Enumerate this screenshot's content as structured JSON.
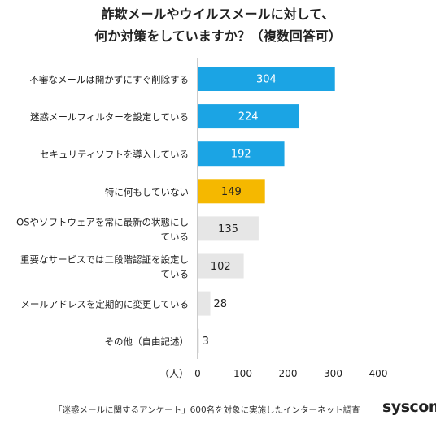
{
  "title": {
    "line1": "詐欺メールやウイルスメールに対して、",
    "line2": "何か対策をしていますか？（複数回答可）"
  },
  "chart_data": {
    "type": "bar",
    "orientation": "horizontal",
    "categories": [
      [
        "不審なメールは開かずにすぐ削除する"
      ],
      [
        "迷惑メールフィルターを設定している"
      ],
      [
        "セキュリティソフトを導入している"
      ],
      [
        "特に何もしていない"
      ],
      [
        "OSやソフトウェアを常に最新の状態にし",
        "ている"
      ],
      [
        "重要なサービスでは二段階認証を設定し",
        "ている"
      ],
      [
        "メールアドレスを定期的に変更している"
      ],
      [
        "その他（自由記述）"
      ]
    ],
    "values": [
      304,
      224,
      192,
      149,
      135,
      102,
      28,
      3
    ],
    "colors": [
      "#1ba4e4",
      "#1ba4e4",
      "#1ba4e4",
      "#f5b800",
      "#e6e6e6",
      "#e6e6e6",
      "#e6e6e6",
      "#e6e6e6"
    ],
    "xlabel": "（人）",
    "xlim": [
      0,
      400
    ],
    "xticks": [
      0,
      100,
      200,
      300,
      400
    ],
    "grid": false
  },
  "footer": {
    "note": "「迷惑メールに関するアンケート」600名を対象に実施したインターネット調査",
    "brand": "syscom"
  }
}
